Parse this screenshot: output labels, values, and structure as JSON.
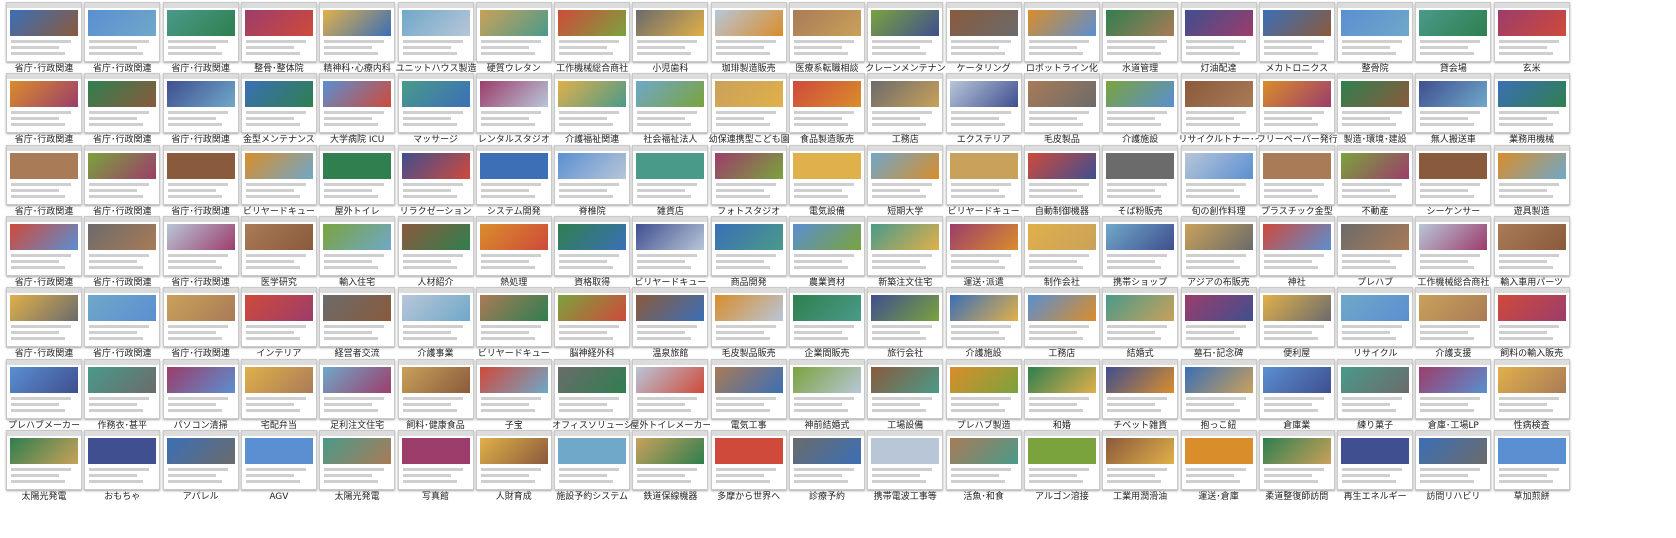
{
  "palette": [
    "#3b6fb6",
    "#7aa33d",
    "#c9a15a",
    "#5a8fd1",
    "#8a5a3c",
    "#cf4a3b",
    "#4a9a8a",
    "#d98d2b",
    "#6b6b6b",
    "#9c3d6b",
    "#2f7f4f",
    "#b8c6d8",
    "#e0b04a",
    "#3f4f8f",
    "#a97b57",
    "#6fa8c9"
  ],
  "rows": [
    [
      "省庁･行政関連",
      "省庁･行政関連",
      "省庁･行政関連",
      "整骨･整体院",
      "精神科･心療内科",
      "ユニットハウス製造",
      "硬質ウレタン",
      "工作機械総合商社",
      "小児歯科",
      "珈琲製造販売",
      "医療系転職相談",
      "クレーンメンテナンス",
      "ケータリング",
      "ロボットライン化",
      "水道管理",
      "灯油配達",
      "メカトロニクス",
      "整骨院",
      "貸会場",
      "玄米"
    ],
    [
      "省庁･行政関連",
      "省庁･行政関連",
      "省庁･行政関連",
      "金型メンテナンス",
      "大学病院 ICU",
      "マッサージ",
      "レンタルスタジオ",
      "介護福祉関連",
      "社会福祉法人",
      "幼保連携型こども園",
      "食品製造販売",
      "工務店",
      "エクステリア",
      "毛皮製品",
      "介護施設",
      "リサイクルトナー･インク",
      "フリーペーパー発行",
      "製造･環境･建設",
      "無人搬送車",
      "業務用機械"
    ],
    [
      "省庁･行政関連",
      "省庁･行政関連",
      "省庁･行政関連",
      "ビリヤードキュー",
      "屋外トイレ",
      "リラクゼーション",
      "システム開発",
      "脊椎院",
      "雑貨店",
      "フォトスタジオ",
      "電気設備",
      "短期大学",
      "ビリヤードキュー",
      "自動制御機器",
      "そば粉販売",
      "旬の創作料理",
      "プラスチック金型",
      "不動産",
      "シーケンサー",
      "遊具製造"
    ],
    [
      "省庁･行政関連",
      "省庁･行政関連",
      "省庁･行政関連",
      "医学研究",
      "輸入住宅",
      "人材紹介",
      "熱処理",
      "資格取得",
      "ビリヤードキュー",
      "商品開発",
      "農業資材",
      "新築注文住宅",
      "運送･派遣",
      "制作会社",
      "携帯ショップ",
      "アジアの布販売",
      "神社",
      "プレハブ",
      "工作機械総合商社",
      "輸入車用パーツ"
    ],
    [
      "省庁･行政関連",
      "省庁･行政関連",
      "省庁･行政関連",
      "インテリア",
      "経営者交流",
      "介護事業",
      "ビリヤードキュー",
      "脳神経外科",
      "温泉旅館",
      "毛皮製品販売",
      "企業間販売",
      "旅行会社",
      "介護施設",
      "工務店",
      "結婚式",
      "墓石･記念碑",
      "便利屋",
      "リサイクル",
      "介護支援",
      "飼料の輸入販売"
    ],
    [
      "プレハブメーカー",
      "作務衣･甚平",
      "パソコン清掃",
      "宅配弁当",
      "足利注文住宅",
      "飼料･健康食品",
      "子宝",
      "オフィスソリューション",
      "屋外トイレメーカー",
      "電気工事",
      "神前結婚式",
      "工場設備",
      "プレハブ製造",
      "和婚",
      "チベット雑貨",
      "抱っこ紐",
      "倉庫業",
      "練り菓子",
      "倉庫･工場LP",
      "性病検査"
    ],
    [
      "太陽光発電",
      "おもちゃ",
      "アパレル",
      "AGV",
      "太陽光発電",
      "写真館",
      "人財育成",
      "施設予約システム",
      "鉄道保線機器",
      "多摩から世界へ",
      "診療予約",
      "携帯電波工事等",
      "活魚･和食",
      "アルゴン溶接",
      "工業用潤滑油",
      "運送･倉庫",
      "柔道整復師訪問",
      "再生エネルギー",
      "訪問リハビリ",
      "草加煎餅"
    ]
  ]
}
